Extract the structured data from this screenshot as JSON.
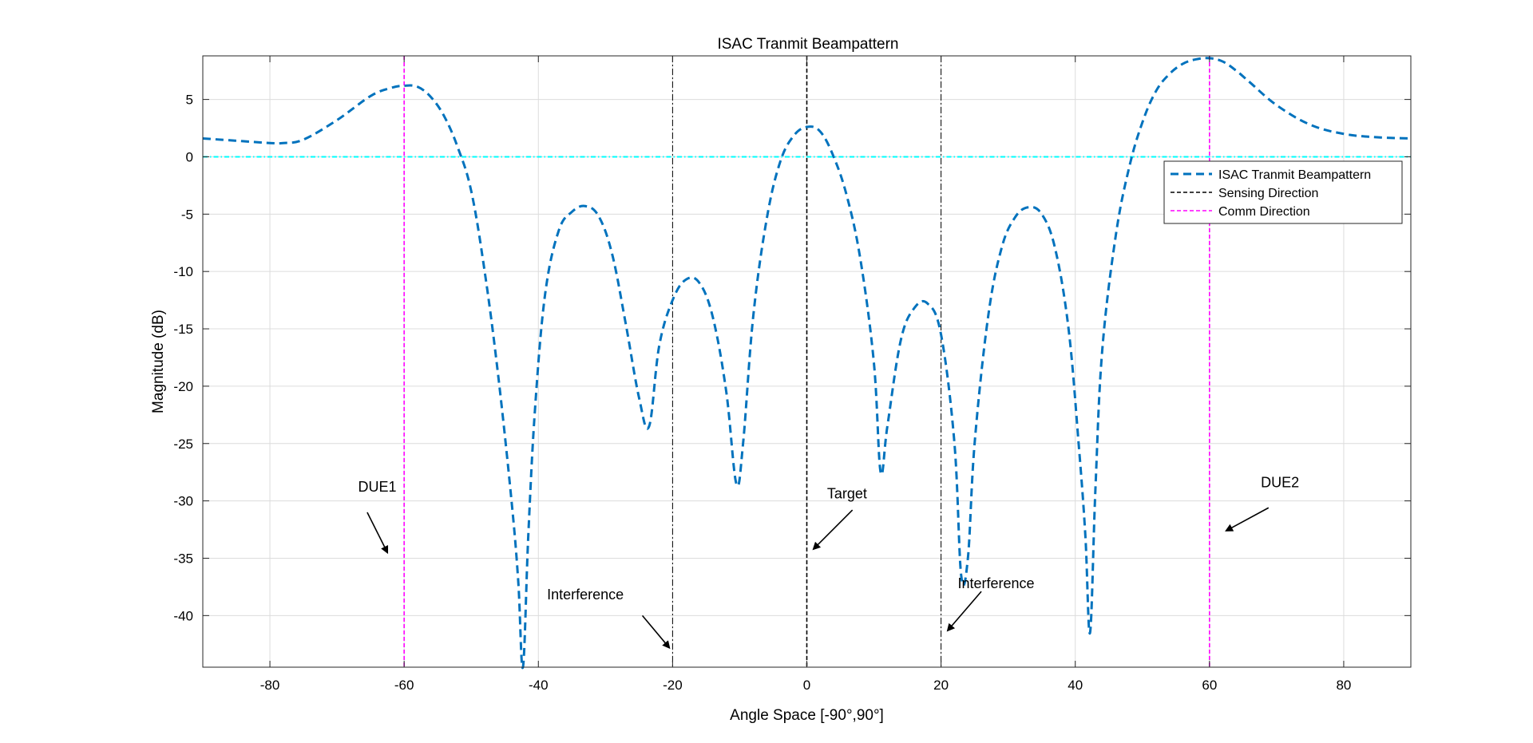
{
  "chart_data": {
    "type": "line",
    "title": "ISAC Tranmit Beampattern",
    "xlabel": "Angle Space [-90°,90°]",
    "ylabel": "Magnitude (dB)",
    "xlim": [
      -90,
      90
    ],
    "ylim": [
      -44.5,
      8.8
    ],
    "xticks": [
      -80,
      -60,
      -40,
      -20,
      0,
      20,
      40,
      60,
      80
    ],
    "yticks": [
      5,
      0,
      -5,
      -10,
      -15,
      -20,
      -25,
      -30,
      -35,
      -40
    ],
    "grid": true,
    "legend_position": "top-right",
    "colors": {
      "beampattern": "#0072BD",
      "sensing": "#000000",
      "comm": "#FF00FF",
      "interference": "#000000",
      "zero_line": "#00FFFF"
    },
    "series": [
      {
        "name": "ISAC Tranmit Beampattern",
        "style": "dashed",
        "x": [
          -90,
          -85,
          -80,
          -78,
          -75,
          -70,
          -65,
          -62,
          -60,
          -58,
          -56,
          -54,
          -52,
          -50,
          -48,
          -46,
          -44,
          -43,
          -42.3,
          -41.5,
          -40.5,
          -39,
          -37,
          -35,
          -33,
          -31,
          -29,
          -27,
          -25,
          -23.5,
          -22,
          -20,
          -18,
          -16,
          -14,
          -12,
          -10.5,
          -9.5,
          -8,
          -6,
          -4,
          -2,
          0,
          2,
          4,
          6,
          8,
          10,
          11,
          12,
          14,
          16,
          18,
          20,
          22,
          23,
          24,
          25,
          27,
          29,
          31,
          33,
          35,
          37,
          39,
          40.5,
          41.5,
          42.2,
          43,
          44,
          46,
          48,
          50,
          52,
          54,
          56,
          58,
          60,
          62,
          64,
          66,
          70,
          75,
          80,
          85,
          90
        ],
        "y": [
          1.6,
          1.4,
          1.2,
          1.2,
          1.5,
          3.2,
          5.3,
          6.0,
          6.2,
          6.1,
          5.2,
          3.5,
          0.8,
          -3.0,
          -10.0,
          -19.0,
          -30.0,
          -37.0,
          -44.5,
          -33.0,
          -22.0,
          -12.0,
          -6.5,
          -4.8,
          -4.3,
          -5.2,
          -8.5,
          -14.5,
          -21.0,
          -23.5,
          -16.5,
          -12.5,
          -10.7,
          -11.0,
          -14.0,
          -20.5,
          -28.5,
          -25.0,
          -14.0,
          -5.5,
          -0.5,
          1.8,
          2.6,
          2.2,
          0.0,
          -3.5,
          -9.0,
          -18.0,
          -27.5,
          -23.5,
          -16.0,
          -13.2,
          -12.8,
          -15.5,
          -25.0,
          -36.5,
          -35.0,
          -25.0,
          -14.0,
          -8.0,
          -5.3,
          -4.4,
          -5.0,
          -8.0,
          -15.0,
          -25.0,
          -33.0,
          -41.5,
          -29.0,
          -17.0,
          -7.0,
          -1.0,
          3.0,
          5.7,
          7.2,
          8.1,
          8.5,
          8.6,
          8.3,
          7.5,
          6.5,
          4.5,
          2.8,
          2.0,
          1.7,
          1.6
        ]
      },
      {
        "name": "Sensing Direction",
        "style": "dashed",
        "x": [
          0,
          0
        ],
        "y": [
          -44.5,
          8.8
        ]
      },
      {
        "name": "Comm Direction",
        "style": "dashed",
        "x_values": [
          -60,
          60
        ],
        "y": [
          -44.5,
          8.8
        ]
      }
    ],
    "reference_lines": {
      "interference_x": [
        -20,
        20
      ],
      "zero_line_y": 0
    },
    "annotations": [
      {
        "text": "DUE1",
        "x": -64,
        "y": -29.2,
        "arrow_from": [
          -65.5,
          -31.0
        ],
        "arrow_to": [
          -62.5,
          -34.5
        ]
      },
      {
        "text": "Interference",
        "x": -33,
        "y": -38.6,
        "arrow_from": [
          -24.5,
          -40.0
        ],
        "arrow_to": [
          -20.5,
          -42.8
        ]
      },
      {
        "text": "Target",
        "x": 6,
        "y": -29.8,
        "arrow_from": [
          6.8,
          -30.8
        ],
        "arrow_to": [
          1.0,
          -34.2
        ]
      },
      {
        "text": "Interference",
        "x": 28.2,
        "y": -37.6,
        "arrow_from": [
          26.0,
          -37.9
        ],
        "arrow_to": [
          21.0,
          -41.3
        ]
      },
      {
        "text": "DUE2",
        "x": 70.5,
        "y": -28.8,
        "arrow_from": [
          68.8,
          -30.6
        ],
        "arrow_to": [
          62.5,
          -32.6
        ]
      }
    ]
  }
}
